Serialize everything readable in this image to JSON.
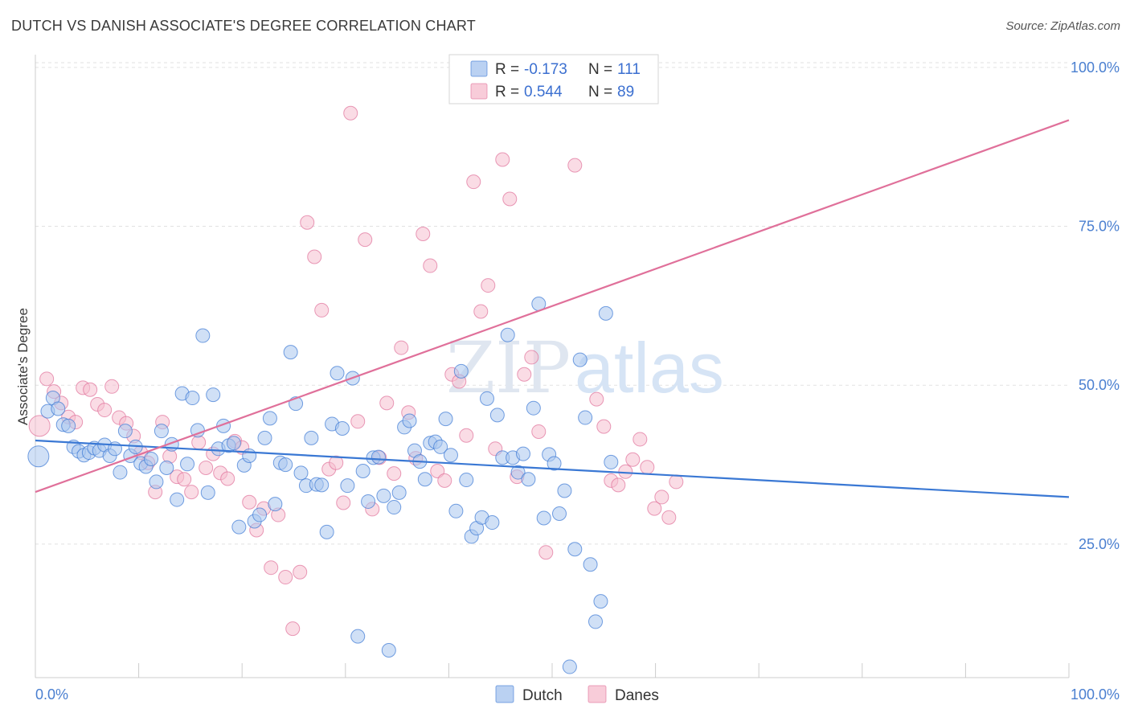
{
  "title": "DUTCH VS DANISH ASSOCIATE'S DEGREE CORRELATION CHART",
  "source": "Source: ZipAtlas.com",
  "watermark": {
    "zip": "ZIP",
    "atlas": "atlas"
  },
  "colors": {
    "dutch": "#3a78d4",
    "danes": "#e0709a",
    "dutch_fill": "#a9c6ef",
    "danes_fill": "#f6bfd0",
    "tick": "#4a7fd0"
  },
  "legend": {
    "r_label": "R =",
    "n_label": "N =",
    "rows": [
      {
        "series": "Dutch",
        "r": "-0.173",
        "n": "111"
      },
      {
        "series": "Danes",
        "r": "0.544",
        "n": "89"
      }
    ]
  },
  "chart_data": {
    "type": "scatter",
    "title": "DUTCH VS DANISH ASSOCIATE'S DEGREE CORRELATION CHART",
    "xlabel": "",
    "ylabel": "Associate's Degree",
    "xlim": [
      0,
      100
    ],
    "ylim": [
      4,
      102
    ],
    "x_tick_labels": [
      "0.0%",
      "100.0%"
    ],
    "y_ticks": [
      {
        "value": 25,
        "label": "25.0%"
      },
      {
        "value": 50,
        "label": "50.0%"
      },
      {
        "value": 75,
        "label": "75.0%"
      },
      {
        "value": 100,
        "label": "100.0%"
      }
    ],
    "grid": true,
    "legend_position": "top-center",
    "series": [
      {
        "name": "Dutch",
        "trend": {
          "x": [
            0,
            100
          ],
          "y": [
            41.3,
            32.4
          ]
        },
        "points": [
          [
            0.3,
            38.8
          ],
          [
            1.2,
            45.9
          ],
          [
            1.7,
            48.0
          ],
          [
            2.2,
            46.3
          ],
          [
            2.7,
            43.8
          ],
          [
            3.2,
            43.6
          ],
          [
            3.7,
            40.3
          ],
          [
            4.2,
            39.6
          ],
          [
            4.7,
            39.0
          ],
          [
            5.2,
            39.4
          ],
          [
            5.7,
            40.1
          ],
          [
            6.2,
            39.7
          ],
          [
            6.7,
            40.6
          ],
          [
            7.2,
            38.9
          ],
          [
            7.7,
            40.0
          ],
          [
            8.2,
            36.3
          ],
          [
            8.7,
            42.8
          ],
          [
            9.2,
            38.9
          ],
          [
            9.7,
            40.3
          ],
          [
            10.2,
            37.7
          ],
          [
            10.7,
            37.2
          ],
          [
            11.2,
            38.4
          ],
          [
            11.7,
            34.8
          ],
          [
            12.2,
            42.8
          ],
          [
            12.7,
            37.0
          ],
          [
            13.2,
            40.7
          ],
          [
            13.7,
            32.0
          ],
          [
            14.2,
            48.7
          ],
          [
            14.7,
            37.6
          ],
          [
            15.2,
            48.0
          ],
          [
            15.7,
            42.9
          ],
          [
            16.2,
            57.8
          ],
          [
            16.7,
            33.1
          ],
          [
            17.2,
            48.5
          ],
          [
            17.7,
            40.0
          ],
          [
            18.2,
            43.6
          ],
          [
            18.7,
            40.5
          ],
          [
            19.2,
            40.9
          ],
          [
            19.7,
            27.7
          ],
          [
            20.2,
            37.4
          ],
          [
            20.7,
            38.9
          ],
          [
            21.2,
            28.6
          ],
          [
            21.7,
            29.6
          ],
          [
            22.2,
            41.7
          ],
          [
            22.7,
            44.8
          ],
          [
            23.2,
            31.3
          ],
          [
            23.7,
            37.8
          ],
          [
            24.2,
            37.5
          ],
          [
            24.7,
            55.2
          ],
          [
            25.2,
            47.1
          ],
          [
            25.7,
            36.2
          ],
          [
            26.2,
            34.2
          ],
          [
            26.7,
            41.7
          ],
          [
            27.2,
            34.4
          ],
          [
            27.7,
            34.3
          ],
          [
            28.2,
            26.9
          ],
          [
            28.7,
            43.9
          ],
          [
            29.2,
            51.9
          ],
          [
            29.7,
            43.2
          ],
          [
            30.2,
            34.2
          ],
          [
            30.7,
            51.1
          ],
          [
            31.2,
            10.5
          ],
          [
            31.7,
            36.5
          ],
          [
            32.2,
            31.7
          ],
          [
            32.7,
            38.6
          ],
          [
            33.2,
            38.7
          ],
          [
            33.7,
            32.6
          ],
          [
            34.2,
            8.3
          ],
          [
            34.7,
            30.8
          ],
          [
            35.2,
            33.1
          ],
          [
            35.7,
            43.4
          ],
          [
            36.2,
            44.4
          ],
          [
            36.7,
            39.7
          ],
          [
            37.2,
            38.0
          ],
          [
            37.7,
            35.2
          ],
          [
            38.2,
            40.9
          ],
          [
            38.7,
            41.1
          ],
          [
            39.2,
            40.3
          ],
          [
            39.7,
            44.7
          ],
          [
            40.2,
            39.0
          ],
          [
            40.7,
            30.2
          ],
          [
            41.2,
            52.2
          ],
          [
            41.7,
            35.1
          ],
          [
            42.2,
            26.2
          ],
          [
            42.7,
            27.5
          ],
          [
            43.2,
            29.2
          ],
          [
            43.7,
            47.9
          ],
          [
            44.2,
            28.4
          ],
          [
            44.7,
            45.3
          ],
          [
            45.2,
            38.6
          ],
          [
            45.7,
            57.9
          ],
          [
            46.2,
            38.6
          ],
          [
            46.7,
            36.3
          ],
          [
            47.2,
            39.2
          ],
          [
            47.7,
            35.2
          ],
          [
            48.2,
            46.4
          ],
          [
            48.7,
            62.8
          ],
          [
            49.2,
            29.1
          ],
          [
            49.7,
            39.1
          ],
          [
            50.2,
            37.7
          ],
          [
            50.7,
            29.8
          ],
          [
            51.2,
            33.4
          ],
          [
            51.7,
            5.7
          ],
          [
            52.2,
            24.2
          ],
          [
            52.7,
            54.0
          ],
          [
            53.2,
            44.9
          ],
          [
            53.7,
            21.8
          ],
          [
            54.2,
            12.8
          ],
          [
            54.7,
            16.0
          ],
          [
            55.2,
            61.3
          ],
          [
            55.7,
            37.9
          ]
        ]
      },
      {
        "name": "Danes",
        "trend": {
          "x": [
            0,
            100
          ],
          "y": [
            33.2,
            91.7
          ]
        },
        "points": [
          [
            0.4,
            43.6
          ],
          [
            1.1,
            51.0
          ],
          [
            1.8,
            49.0
          ],
          [
            2.5,
            47.2
          ],
          [
            3.2,
            45.0
          ],
          [
            3.9,
            44.2
          ],
          [
            4.6,
            49.6
          ],
          [
            5.3,
            49.3
          ],
          [
            6.0,
            47.0
          ],
          [
            6.7,
            46.1
          ],
          [
            7.4,
            49.8
          ],
          [
            8.1,
            44.9
          ],
          [
            8.8,
            44.0
          ],
          [
            9.5,
            42.0
          ],
          [
            10.2,
            39.4
          ],
          [
            10.9,
            37.8
          ],
          [
            11.6,
            33.2
          ],
          [
            12.3,
            44.2
          ],
          [
            13.0,
            38.8
          ],
          [
            13.7,
            35.6
          ],
          [
            14.4,
            35.2
          ],
          [
            15.1,
            33.2
          ],
          [
            15.8,
            41.0
          ],
          [
            16.5,
            37.0
          ],
          [
            17.2,
            39.2
          ],
          [
            17.9,
            36.2
          ],
          [
            18.6,
            35.3
          ],
          [
            19.3,
            41.2
          ],
          [
            20.0,
            40.2
          ],
          [
            20.7,
            31.6
          ],
          [
            21.4,
            27.2
          ],
          [
            22.1,
            30.6
          ],
          [
            22.8,
            21.3
          ],
          [
            23.5,
            29.6
          ],
          [
            24.2,
            19.8
          ],
          [
            24.9,
            11.7
          ],
          [
            25.6,
            20.6
          ],
          [
            26.3,
            75.6
          ],
          [
            27.0,
            70.2
          ],
          [
            27.7,
            61.8
          ],
          [
            28.4,
            36.8
          ],
          [
            29.1,
            37.8
          ],
          [
            29.8,
            31.5
          ],
          [
            30.5,
            92.8
          ],
          [
            31.2,
            44.3
          ],
          [
            31.9,
            72.9
          ],
          [
            32.6,
            30.5
          ],
          [
            33.3,
            38.6
          ],
          [
            34.0,
            47.2
          ],
          [
            34.7,
            36.1
          ],
          [
            35.4,
            55.9
          ],
          [
            36.1,
            45.7
          ],
          [
            36.8,
            38.5
          ],
          [
            37.5,
            73.8
          ],
          [
            38.2,
            68.8
          ],
          [
            38.9,
            36.5
          ],
          [
            39.6,
            35.0
          ],
          [
            40.3,
            51.7
          ],
          [
            41.0,
            50.6
          ],
          [
            41.7,
            42.1
          ],
          [
            42.4,
            82.0
          ],
          [
            43.1,
            61.6
          ],
          [
            43.8,
            65.7
          ],
          [
            44.5,
            40.0
          ],
          [
            45.2,
            85.5
          ],
          [
            45.9,
            79.3
          ],
          [
            46.6,
            35.6
          ],
          [
            47.3,
            51.7
          ],
          [
            48.0,
            54.4
          ],
          [
            48.7,
            42.7
          ],
          [
            49.4,
            23.7
          ],
          [
            50.1,
            96.8
          ],
          [
            50.8,
            100.0
          ],
          [
            51.5,
            100.0
          ],
          [
            52.2,
            84.6
          ],
          [
            52.9,
            100.0
          ],
          [
            53.6,
            100.0
          ],
          [
            54.3,
            47.8
          ],
          [
            55.0,
            43.5
          ],
          [
            55.7,
            35.0
          ],
          [
            56.4,
            34.3
          ],
          [
            57.1,
            36.4
          ],
          [
            57.8,
            38.3
          ],
          [
            58.5,
            41.5
          ],
          [
            59.2,
            37.1
          ],
          [
            59.9,
            30.6
          ],
          [
            60.6,
            32.4
          ],
          [
            61.3,
            29.2
          ],
          [
            62.0,
            34.8
          ]
        ]
      }
    ]
  }
}
